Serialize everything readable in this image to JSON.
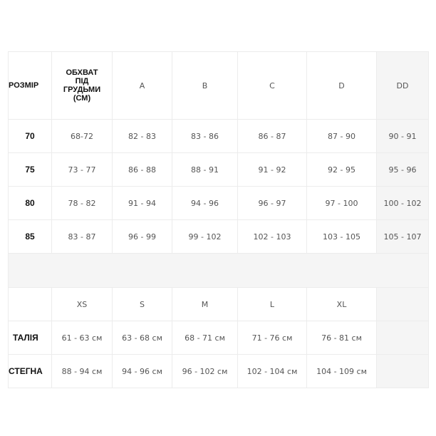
{
  "bra_table": {
    "headers": [
      "РОЗМІР",
      "ОБХВАТ ПІД ГРУДЬМИ (СМ)",
      "A",
      "B",
      "C",
      "D",
      "DD"
    ],
    "header_lines": [
      "ОБХВАТ",
      "ПІД",
      "ГРУДЬМИ",
      "(СМ)"
    ],
    "rows": [
      [
        "70",
        "68-72",
        "82 - 83",
        "83 - 86",
        "86 - 87",
        "87 - 90",
        "90 - 91"
      ],
      [
        "75",
        "73 - 77",
        "86 - 88",
        "88 - 91",
        "91 - 92",
        "92 - 95",
        "95 - 96"
      ],
      [
        "80",
        "78 - 82",
        "91 - 94",
        "94 - 96",
        "96 - 97",
        "97 - 100",
        "100 - 102"
      ],
      [
        "85",
        "83 - 87",
        "96 - 99",
        "99 - 102",
        "102 - 103",
        "103 - 105",
        "105 - 107"
      ]
    ]
  },
  "panty_table": {
    "sizes": [
      "XS",
      "S",
      "M",
      "L",
      "XL"
    ],
    "rows": [
      {
        "label": "ТАЛІЯ",
        "values": [
          "61 - 63 см",
          "63 - 68 см",
          "68 - 71 см",
          "71 - 76 см",
          "76 - 81 см"
        ]
      },
      {
        "label": "СТЕГНА",
        "values": [
          "88 - 94 см",
          "94 - 96 см",
          "96 - 102 см",
          "102 - 104 см",
          "104 - 109 см"
        ]
      }
    ]
  },
  "colors": {
    "highlight_bg": "#f5f5f5",
    "border": "#ececec"
  }
}
